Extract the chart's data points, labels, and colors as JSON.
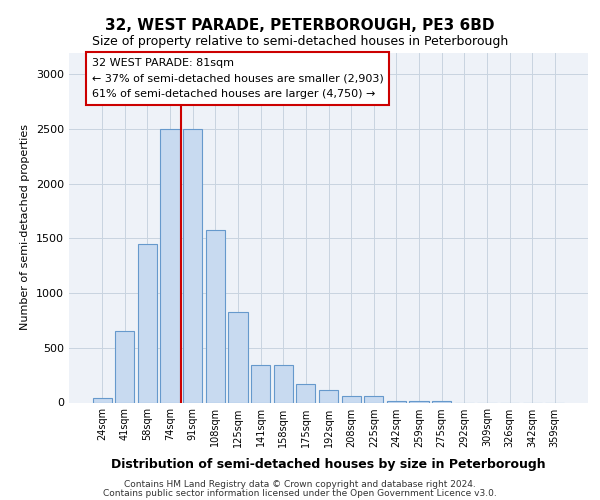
{
  "title": "32, WEST PARADE, PETERBOROUGH, PE3 6BD",
  "subtitle": "Size of property relative to semi-detached houses in Peterborough",
  "xlabel": "Distribution of semi-detached houses by size in Peterborough",
  "ylabel": "Number of semi-detached properties",
  "footer_line1": "Contains HM Land Registry data © Crown copyright and database right 2024.",
  "footer_line2": "Contains public sector information licensed under the Open Government Licence v3.0.",
  "categories": [
    "24sqm",
    "41sqm",
    "58sqm",
    "74sqm",
    "91sqm",
    "108sqm",
    "125sqm",
    "141sqm",
    "158sqm",
    "175sqm",
    "192sqm",
    "208sqm",
    "225sqm",
    "242sqm",
    "259sqm",
    "275sqm",
    "292sqm",
    "309sqm",
    "326sqm",
    "342sqm",
    "359sqm"
  ],
  "values": [
    40,
    650,
    1450,
    2500,
    2500,
    1580,
    830,
    340,
    340,
    165,
    115,
    55,
    55,
    10,
    10,
    10,
    0,
    0,
    0,
    0,
    0
  ],
  "bar_color": "#c8daf0",
  "bar_edge_color": "#6699cc",
  "grid_color": "#c8d4e0",
  "background_color": "#eef2f8",
  "annotation_text": "32 WEST PARADE: 81sqm\n← 37% of semi-detached houses are smaller (2,903)\n61% of semi-detached houses are larger (4,750) →",
  "red_line_color": "#cc0000",
  "annotation_box_edge_color": "#cc0000",
  "ylim": [
    0,
    3200
  ],
  "yticks": [
    0,
    500,
    1000,
    1500,
    2000,
    2500,
    3000
  ],
  "red_line_x": 3.5,
  "figsize": [
    6.0,
    5.0
  ],
  "dpi": 100
}
